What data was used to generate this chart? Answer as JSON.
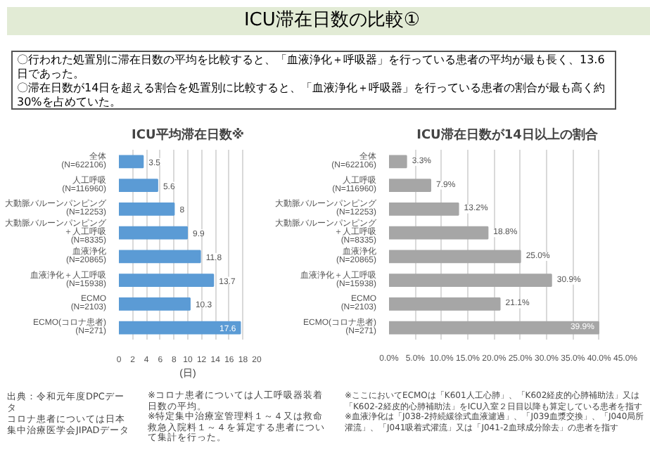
{
  "chart_data": [
    {
      "type": "bar",
      "orientation": "horizontal",
      "title": "ICU平均滞在日数※",
      "xlabel": "(日)",
      "categories": [
        "全体\n(N=622106)",
        "人工呼吸\n(N=116960)",
        "大動脈バルーンパンピング\n(N=12253)",
        "大動脈バルーンパンピング＋人工呼吸\n(N=8335)",
        "血液浄化\n(N=20865)",
        "血液浄化＋人工呼吸\n(N=15938)",
        "ECMO\n(N=2103)",
        "ECMO(コロナ患者)\n(N=271)"
      ],
      "values": [
        3.5,
        5.6,
        8,
        9.9,
        11.8,
        13.7,
        10.3,
        17.6
      ],
      "color": "#5b9bd5",
      "data_labels": true,
      "xlim": [
        0,
        20
      ],
      "xticks": [
        0,
        2,
        4,
        6,
        8,
        10,
        12,
        14,
        16,
        18,
        20
      ],
      "grid": "x",
      "annotations": [
        "ICU滞在日数の比較①",
        "〇行われた処置別に滞在日数の平均を比較すると、「血液浄化＋呼吸器」を行っている患者の平均が最も長く、13.6日であった。",
        "〇滞在日数が14日を超える割合を処置別に比較すると、「血液浄化＋呼吸器」を行っている患者の割合が最も高く約30%を占めていた。",
        "出典：令和元年度DPCデータ",
        "コロナ患者については日本集中治療医学会JIPADデータ",
        "※コロナ患者については人工呼吸器装着日数の平均。",
        "※特定集中治療室管理料１～４又は救命救急入院料１～４を算定する患者について集計を行った。",
        "20"
      ]
    },
    {
      "type": "bar",
      "orientation": "horizontal",
      "title": "ICU滞在日数が14日以上の割合",
      "categories": [
        "全体\n(N=622106)",
        "人工呼吸\n(N=116960)",
        "大動脈バルーンパンピング\n(N=12253)",
        "大動脈バルーンパンピング＋人工呼吸\n(N=8335)",
        "血液浄化\n(N=20865)",
        "血液浄化＋人工呼吸\n(N=15938)",
        "ECMO\n(N=2103)",
        "ECMO(コロナ患者)\n(N=271)"
      ],
      "values": [
        3.3,
        7.9,
        13.2,
        18.8,
        25.0,
        30.9,
        21.1,
        39.9
      ],
      "color": "#a6a6a6",
      "value_labels": [
        "3.3%",
        "7.9%",
        "13.2%",
        "18.8%",
        "25.0%",
        "30.9%",
        "21.1%",
        "39.9%"
      ],
      "xlim": [
        0,
        45
      ],
      "xticks": [
        {
          "value": 0,
          "label": "0.0%"
        },
        {
          "value": 5,
          "label": "5.0%"
        },
        {
          "value": 10,
          "label": "10.0%"
        },
        {
          "value": 15,
          "label": "15.0%"
        },
        {
          "value": 20,
          "label": "20.0%"
        },
        {
          "value": 25,
          "label": "25.0%"
        },
        {
          "value": 30,
          "label": "30.0%"
        },
        {
          "value": 35,
          "label": "35.0%"
        },
        {
          "value": 40,
          "label": "40.0%"
        },
        {
          "value": 45,
          "label": "45.0%"
        }
      ],
      "grid": "x",
      "annotations": [
        "※ここにおいてECMOは「K601人工心肺」、「K602経皮的心肺補助法」又は「K602-2経皮的心肺補助法」をICU入室２日目以降も算定している患者を指す",
        "※血液浄化は「J038-2持続緩徐式血液濾過」、「J039血漿交換」、「J040局所灌流」、「J041吸着式灌流」又は「J041-2血球成分除去」の患者を指す"
      ]
    }
  ]
}
